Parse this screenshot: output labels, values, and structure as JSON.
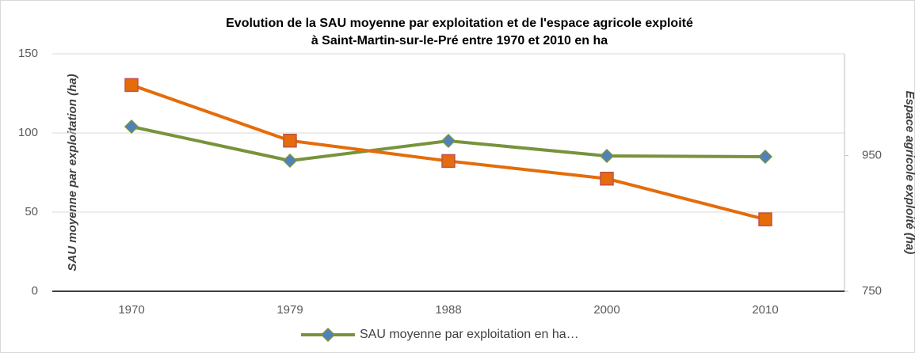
{
  "chart_data": {
    "type": "line",
    "title": [
      "Evolution de la SAU moyenne par exploitation et de l'espace agricole exploité",
      "à Saint-Martin-sur-le-Pré entre 1970 et 2010 en ha"
    ],
    "y_label": "SAU moyenne par exploitation (ha)",
    "y2_label": "Espace agricole exploité (ha)",
    "categories": [
      "1970",
      "1979",
      "1988",
      "2000",
      "2010"
    ],
    "series": [
      {
        "name": "SAU moyenne par exploitation en ha…",
        "color": "#77933c",
        "marker_color": "#4f81bd",
        "values": [
          104,
          82.5,
          95,
          85.5,
          85
        ]
      },
      {
        "color": "#e46c0a",
        "marker_color": "#c0504d",
        "axis": "y2",
        "values": [
          1054,
          972,
          942,
          916,
          856
        ]
      }
    ],
    "ylim": [
      0,
      150
    ],
    "yticks": [
      0,
      50,
      100,
      150
    ],
    "y2lim": [
      750,
      1100
    ],
    "y2ticks": [
      750,
      950
    ],
    "grid": true,
    "legend": "bottom"
  }
}
